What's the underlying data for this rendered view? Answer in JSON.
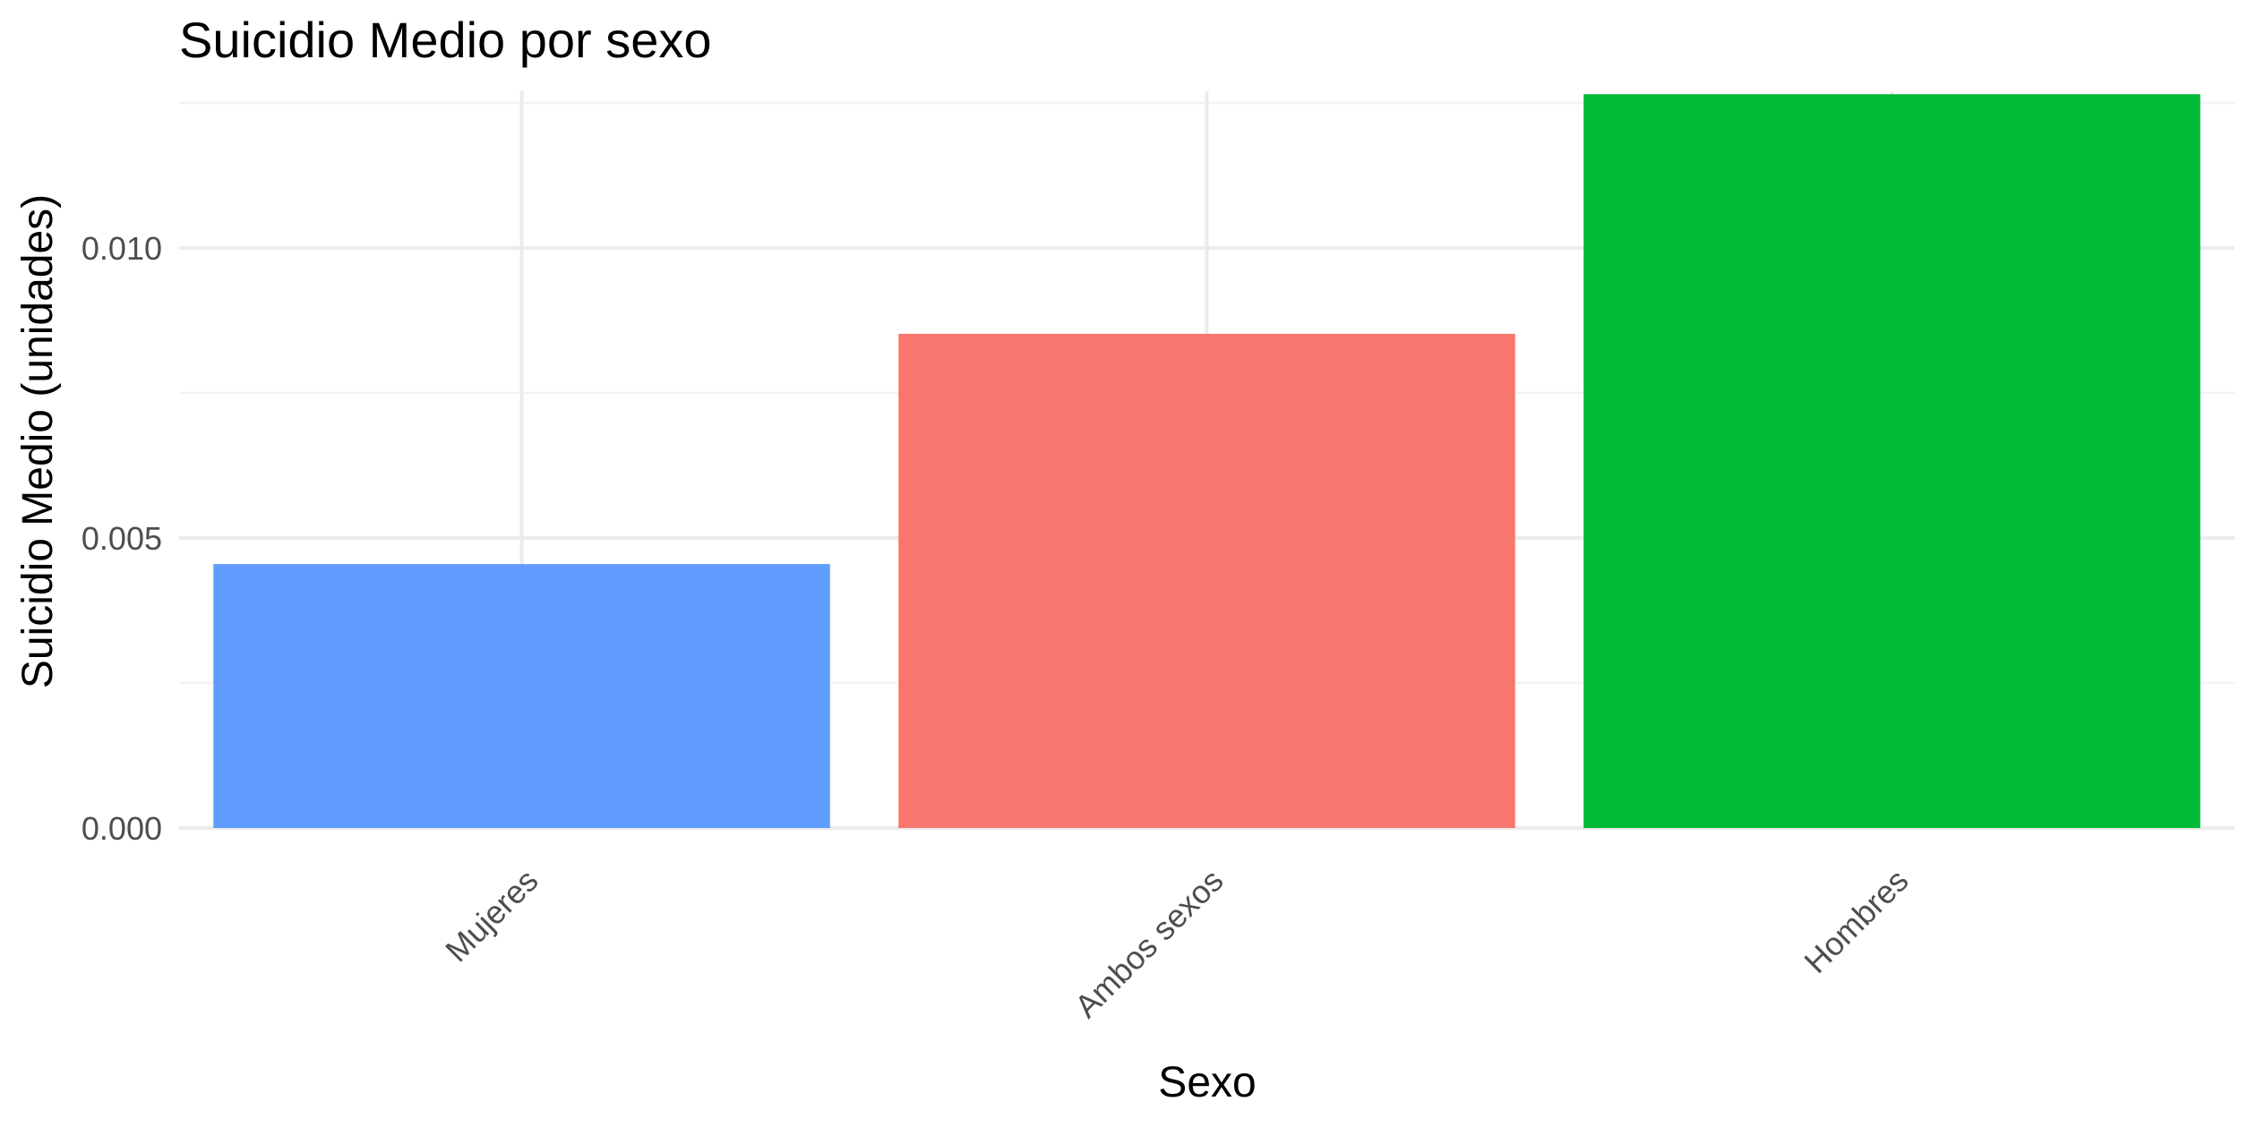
{
  "chart_data": {
    "type": "bar",
    "title": "Suicidio Medio por sexo",
    "xlabel": "Sexo",
    "ylabel": "Suicidio Medio (unidades)",
    "categories": [
      "Mujeres",
      "Ambos sexos",
      "Hombres"
    ],
    "values": [
      0.00455,
      0.00852,
      0.01265
    ],
    "colors": [
      "#619CFF",
      "#F8766D",
      "#00BA38"
    ],
    "ylim": [
      0,
      0.0127
    ],
    "yticks": [
      0.0,
      0.005,
      0.01
    ],
    "ytick_labels": [
      "0.000",
      "0.005",
      "0.010"
    ],
    "grid": true,
    "legend": "none"
  }
}
